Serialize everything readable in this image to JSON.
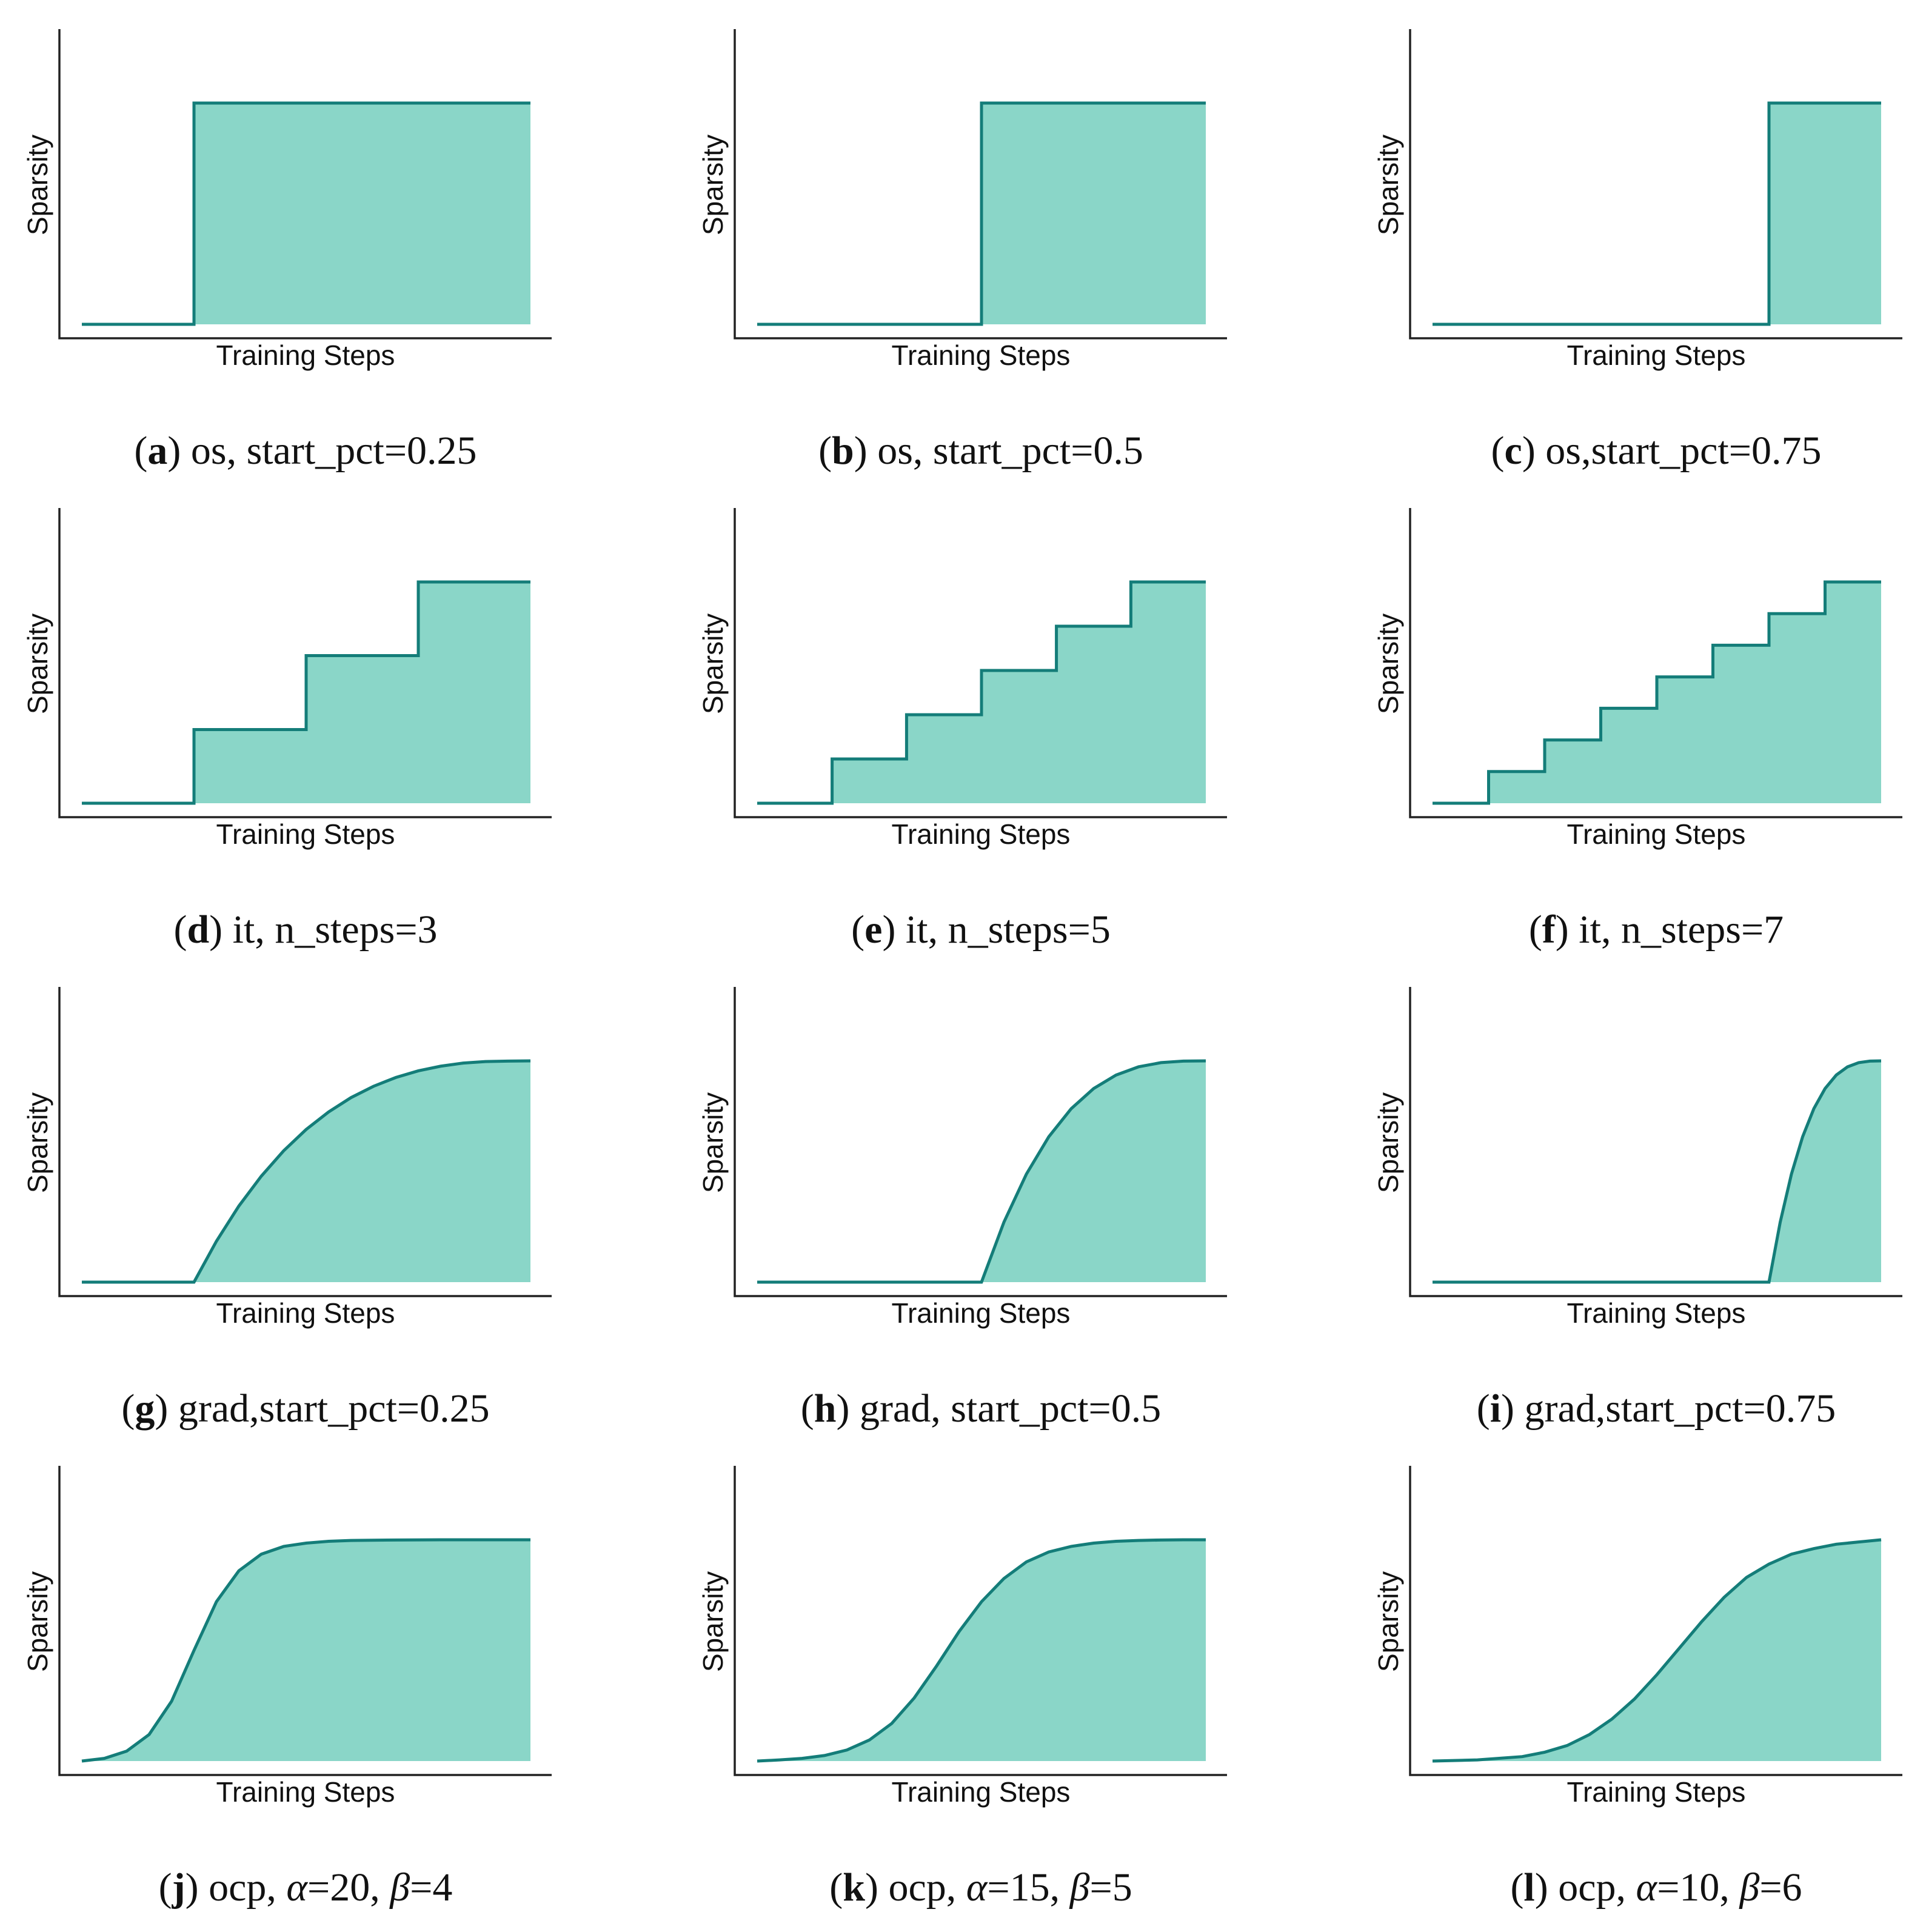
{
  "chart_data": [
    {
      "id": "a",
      "type": "area",
      "schedule": "os",
      "caption": {
        "letter": "a",
        "parts": [
          {
            "text": "os, start_pct=0.25"
          }
        ]
      },
      "xlabel": "Training Steps",
      "ylabel": "Sparsity",
      "xlim": [
        0,
        1
      ],
      "ylim": [
        0,
        1
      ],
      "x": [
        0,
        0.25,
        0.25,
        1
      ],
      "y": [
        0,
        0,
        1,
        1
      ]
    },
    {
      "id": "b",
      "type": "area",
      "schedule": "os",
      "caption": {
        "letter": "b",
        "parts": [
          {
            "text": "os, start_pct=0.5"
          }
        ]
      },
      "xlabel": "Training Steps",
      "ylabel": "Sparsity",
      "xlim": [
        0,
        1
      ],
      "ylim": [
        0,
        1
      ],
      "x": [
        0,
        0.5,
        0.5,
        1
      ],
      "y": [
        0,
        0,
        1,
        1
      ]
    },
    {
      "id": "c",
      "type": "area",
      "schedule": "os",
      "caption": {
        "letter": "c",
        "parts": [
          {
            "text": "os,start_pct=0.75"
          }
        ]
      },
      "xlabel": "Training Steps",
      "ylabel": "Sparsity",
      "xlim": [
        0,
        1
      ],
      "ylim": [
        0,
        1
      ],
      "x": [
        0,
        0.75,
        0.75,
        1
      ],
      "y": [
        0,
        0,
        1,
        1
      ]
    },
    {
      "id": "d",
      "type": "area",
      "schedule": "it",
      "caption": {
        "letter": "d",
        "parts": [
          {
            "text": "it, n_steps=3"
          }
        ]
      },
      "xlabel": "Training Steps",
      "ylabel": "Sparsity",
      "xlim": [
        0,
        1
      ],
      "ylim": [
        0,
        1
      ],
      "x": [
        0,
        0.25,
        0.25,
        0.5,
        0.5,
        0.75,
        0.75,
        1
      ],
      "y": [
        0,
        0,
        0.333,
        0.333,
        0.667,
        0.667,
        1,
        1
      ]
    },
    {
      "id": "e",
      "type": "area",
      "schedule": "it",
      "caption": {
        "letter": "e",
        "parts": [
          {
            "text": "it, n_steps=5"
          }
        ]
      },
      "xlabel": "Training Steps",
      "ylabel": "Sparsity",
      "xlim": [
        0,
        1
      ],
      "ylim": [
        0,
        1
      ],
      "x": [
        0,
        0.167,
        0.167,
        0.333,
        0.333,
        0.5,
        0.5,
        0.667,
        0.667,
        0.833,
        0.833,
        1
      ],
      "y": [
        0,
        0,
        0.2,
        0.2,
        0.4,
        0.4,
        0.6,
        0.6,
        0.8,
        0.8,
        1,
        1
      ]
    },
    {
      "id": "f",
      "type": "area",
      "schedule": "it",
      "caption": {
        "letter": "f",
        "parts": [
          {
            "text": "it, n_steps=7"
          }
        ]
      },
      "xlabel": "Training Steps",
      "ylabel": "Sparsity",
      "xlim": [
        0,
        1
      ],
      "ylim": [
        0,
        1
      ],
      "x": [
        0,
        0.125,
        0.125,
        0.25,
        0.25,
        0.375,
        0.375,
        0.5,
        0.5,
        0.625,
        0.625,
        0.75,
        0.75,
        0.875,
        0.875,
        1
      ],
      "y": [
        0,
        0,
        0.143,
        0.143,
        0.286,
        0.286,
        0.429,
        0.429,
        0.571,
        0.571,
        0.714,
        0.714,
        0.857,
        0.857,
        1,
        1
      ]
    },
    {
      "id": "g",
      "type": "area",
      "schedule": "grad",
      "caption": {
        "letter": "g",
        "parts": [
          {
            "text": "grad,start_pct=0.25"
          }
        ]
      },
      "xlabel": "Training Steps",
      "ylabel": "Sparsity",
      "xlim": [
        0,
        1
      ],
      "ylim": [
        0,
        1
      ],
      "x": [
        0,
        0.25,
        0.3,
        0.35,
        0.4,
        0.45,
        0.5,
        0.55,
        0.6,
        0.65,
        0.7,
        0.75,
        0.8,
        0.85,
        0.9,
        0.95,
        1
      ],
      "y": [
        0,
        0,
        0.185,
        0.344,
        0.479,
        0.594,
        0.69,
        0.769,
        0.834,
        0.885,
        0.925,
        0.955,
        0.976,
        0.99,
        0.997,
        0.999,
        1
      ]
    },
    {
      "id": "h",
      "type": "area",
      "schedule": "grad",
      "caption": {
        "letter": "h",
        "parts": [
          {
            "text": "grad, start_pct=0.5"
          }
        ]
      },
      "xlabel": "Training Steps",
      "ylabel": "Sparsity",
      "xlim": [
        0,
        1
      ],
      "ylim": [
        0,
        1
      ],
      "x": [
        0,
        0.5,
        0.55,
        0.6,
        0.65,
        0.7,
        0.75,
        0.8,
        0.85,
        0.9,
        0.95,
        1
      ],
      "y": [
        0,
        0,
        0.271,
        0.488,
        0.657,
        0.784,
        0.875,
        0.936,
        0.973,
        0.992,
        0.999,
        1
      ]
    },
    {
      "id": "i",
      "type": "area",
      "schedule": "grad",
      "caption": {
        "letter": "i",
        "parts": [
          {
            "text": "grad,start_pct=0.75"
          }
        ]
      },
      "xlabel": "Training Steps",
      "ylabel": "Sparsity",
      "xlim": [
        0,
        1
      ],
      "ylim": [
        0,
        1
      ],
      "x": [
        0,
        0.75,
        0.775,
        0.8,
        0.825,
        0.85,
        0.875,
        0.9,
        0.925,
        0.95,
        0.975,
        1
      ],
      "y": [
        0,
        0,
        0.271,
        0.488,
        0.657,
        0.784,
        0.875,
        0.936,
        0.973,
        0.992,
        0.999,
        1
      ]
    },
    {
      "id": "j",
      "type": "area",
      "schedule": "ocp",
      "caption": {
        "letter": "j",
        "parts": [
          {
            "text": "ocp, "
          },
          {
            "text": "α",
            "italic": true
          },
          {
            "text": "=20, "
          },
          {
            "text": "β",
            "italic": true
          },
          {
            "text": "=4"
          }
        ]
      },
      "xlabel": "Training Steps",
      "ylabel": "Sparsity",
      "xlim": [
        0,
        1
      ],
      "ylim": [
        0,
        1
      ],
      "x": [
        0,
        0.05,
        0.1,
        0.15,
        0.2,
        0.25,
        0.3,
        0.35,
        0.4,
        0.45,
        0.5,
        0.55,
        0.6,
        0.7,
        0.8,
        0.9,
        1
      ],
      "y": [
        0,
        0.012,
        0.045,
        0.12,
        0.27,
        0.5,
        0.72,
        0.86,
        0.935,
        0.97,
        0.985,
        0.993,
        0.997,
        0.999,
        1,
        1,
        1
      ]
    },
    {
      "id": "k",
      "type": "area",
      "schedule": "ocp",
      "caption": {
        "letter": "k",
        "parts": [
          {
            "text": "ocp, "
          },
          {
            "text": "α",
            "italic": true
          },
          {
            "text": "=15, "
          },
          {
            "text": "β",
            "italic": true
          },
          {
            "text": "=5"
          }
        ]
      },
      "xlabel": "Training Steps",
      "ylabel": "Sparsity",
      "xlim": [
        0,
        1
      ],
      "ylim": [
        0,
        1
      ],
      "x": [
        0,
        0.05,
        0.1,
        0.15,
        0.2,
        0.25,
        0.3,
        0.35,
        0.4,
        0.45,
        0.5,
        0.55,
        0.6,
        0.65,
        0.7,
        0.75,
        0.8,
        0.85,
        0.9,
        0.95,
        1
      ],
      "y": [
        0,
        0.005,
        0.012,
        0.025,
        0.05,
        0.095,
        0.17,
        0.285,
        0.43,
        0.585,
        0.72,
        0.825,
        0.9,
        0.945,
        0.97,
        0.985,
        0.993,
        0.997,
        0.999,
        1,
        1
      ]
    },
    {
      "id": "l",
      "type": "area",
      "schedule": "ocp",
      "caption": {
        "letter": "l",
        "parts": [
          {
            "text": "ocp, "
          },
          {
            "text": "α",
            "italic": true
          },
          {
            "text": "=10, "
          },
          {
            "text": "β",
            "italic": true
          },
          {
            "text": "=6"
          }
        ]
      },
      "xlabel": "Training Steps",
      "ylabel": "Sparsity",
      "xlim": [
        0,
        1
      ],
      "ylim": [
        0,
        1
      ],
      "x": [
        0,
        0.1,
        0.2,
        0.25,
        0.3,
        0.35,
        0.4,
        0.45,
        0.5,
        0.55,
        0.6,
        0.65,
        0.7,
        0.75,
        0.8,
        0.85,
        0.9,
        0.95,
        1
      ],
      "y": [
        0,
        0.005,
        0.02,
        0.04,
        0.07,
        0.12,
        0.19,
        0.28,
        0.39,
        0.51,
        0.63,
        0.74,
        0.83,
        0.89,
        0.935,
        0.96,
        0.98,
        0.99,
        1
      ]
    }
  ]
}
